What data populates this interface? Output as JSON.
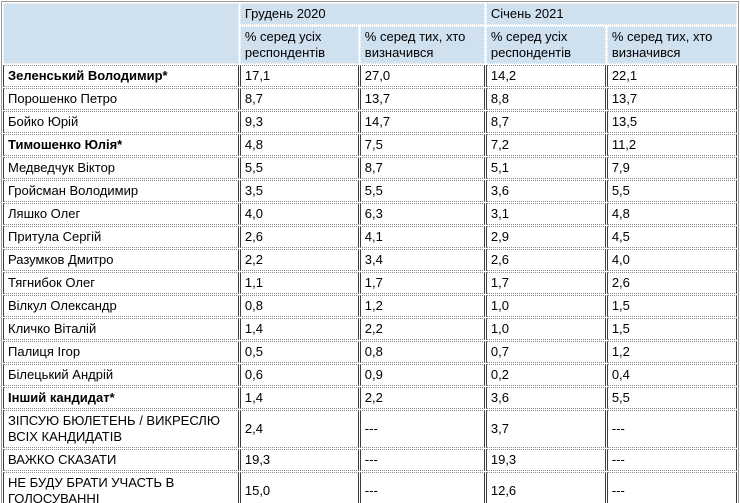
{
  "colors": {
    "header_bg": "#cfe0ef",
    "body_bg": "#ffffff",
    "border_solid": "#3c3c3c",
    "border_dotted": "#8a8a8a",
    "text": "#000000"
  },
  "table": {
    "corner_label": "",
    "column_groups": [
      {
        "label": "Грудень 2020"
      },
      {
        "label": "Січень 2021"
      }
    ],
    "subheaders": [
      "% серед усіх респондентів",
      "% серед тих, хто визначився",
      "% серед усіх респондентів",
      "% серед тих, хто визначився"
    ],
    "rows": [
      {
        "name": "Зеленський Володимир*",
        "bold": true,
        "values": [
          "17,1",
          "27,0",
          "14,2",
          "22,1"
        ]
      },
      {
        "name": "Порошенко Петро",
        "bold": false,
        "values": [
          "8,7",
          "13,7",
          "8,8",
          "13,7"
        ]
      },
      {
        "name": "Бойко Юрій",
        "bold": false,
        "values": [
          "9,3",
          "14,7",
          "8,7",
          "13,5"
        ]
      },
      {
        "name": "Тимошенко Юлія*",
        "bold": true,
        "values": [
          "4,8",
          "7,5",
          "7,2",
          "11,2"
        ]
      },
      {
        "name": "Медведчук Віктор",
        "bold": false,
        "values": [
          "5,5",
          "8,7",
          "5,1",
          "7,9"
        ]
      },
      {
        "name": "Гройсман Володимир",
        "bold": false,
        "values": [
          "3,5",
          "5,5",
          "3,6",
          "5,5"
        ]
      },
      {
        "name": "Ляшко Олег",
        "bold": false,
        "values": [
          "4,0",
          "6,3",
          "3,1",
          "4,8"
        ]
      },
      {
        "name": "Притула Сергій",
        "bold": false,
        "values": [
          "2,6",
          "4,1",
          "2,9",
          "4,5"
        ]
      },
      {
        "name": "Разумков Дмитро",
        "bold": false,
        "values": [
          "2,2",
          "3,4",
          "2,6",
          "4,0"
        ]
      },
      {
        "name": "Тягнибок Олег",
        "bold": false,
        "values": [
          "1,1",
          "1,7",
          "1,7",
          "2,6"
        ]
      },
      {
        "name": "Вілкул Олександр",
        "bold": false,
        "values": [
          "0,8",
          "1,2",
          "1,0",
          "1,5"
        ]
      },
      {
        "name": "Кличко Віталій",
        "bold": false,
        "values": [
          "1,4",
          "2,2",
          "1,0",
          "1,5"
        ]
      },
      {
        "name": "Палиця Ігор",
        "bold": false,
        "values": [
          "0,5",
          "0,8",
          "0,7",
          "1,2"
        ]
      },
      {
        "name": "Білецький Андрій",
        "bold": false,
        "values": [
          "0,6",
          "0,9",
          "0,2",
          "0,4"
        ]
      },
      {
        "name": "Інший кандидат*",
        "bold": true,
        "values": [
          "1,4",
          "2,2",
          "3,6",
          "5,5"
        ]
      },
      {
        "name": "ЗІПСУЮ БЮЛЕТЕНЬ / ВИКРЕСЛЮ ВСІХ КАНДИДАТІВ",
        "bold": false,
        "values": [
          "2,4",
          "---",
          "3,7",
          "---"
        ]
      },
      {
        "name": "ВАЖКО СКАЗАТИ",
        "bold": false,
        "values": [
          "19,3",
          "---",
          "19,3",
          "---"
        ]
      },
      {
        "name": "НЕ БУДУ БРАТИ УЧАСТЬ В ГОЛОСУВАННІ",
        "bold": false,
        "values": [
          "15,0",
          "---",
          "12,6",
          "---"
        ]
      }
    ]
  }
}
